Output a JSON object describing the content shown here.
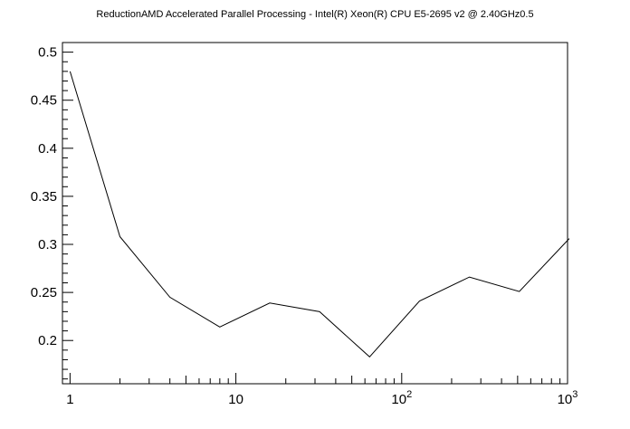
{
  "chart_data": {
    "type": "line",
    "title": "ReductionAMD Accelerated Parallel Processing - Intel(R) Xeon(R) CPU E5-2695 v2 @ 2.40GHz0.5",
    "xlabel": "",
    "ylabel": "",
    "x_scale": "log",
    "xlim": [
      0.9,
      1000
    ],
    "ylim": [
      0.155,
      0.51
    ],
    "grid": false,
    "x_ticks": [
      {
        "value": 1,
        "label": "1"
      },
      {
        "value": 10,
        "label": "10"
      },
      {
        "value": 100,
        "label": "10",
        "sup": "2"
      },
      {
        "value": 1000,
        "label": "10",
        "sup": "3"
      }
    ],
    "y_ticks": [
      {
        "value": 0.2,
        "label": "0.2"
      },
      {
        "value": 0.25,
        "label": "0.25"
      },
      {
        "value": 0.3,
        "label": "0.3"
      },
      {
        "value": 0.35,
        "label": "0.35"
      },
      {
        "value": 0.4,
        "label": "0.4"
      },
      {
        "value": 0.45,
        "label": "0.45"
      },
      {
        "value": 0.5,
        "label": "0.5"
      }
    ],
    "series": [
      {
        "x": [
          1,
          2,
          4,
          8,
          16,
          32,
          64,
          128,
          256,
          512,
          1024
        ],
        "values": [
          0.48,
          0.308,
          0.245,
          0.214,
          0.239,
          0.23,
          0.183,
          0.241,
          0.266,
          0.251,
          0.306
        ]
      }
    ]
  }
}
